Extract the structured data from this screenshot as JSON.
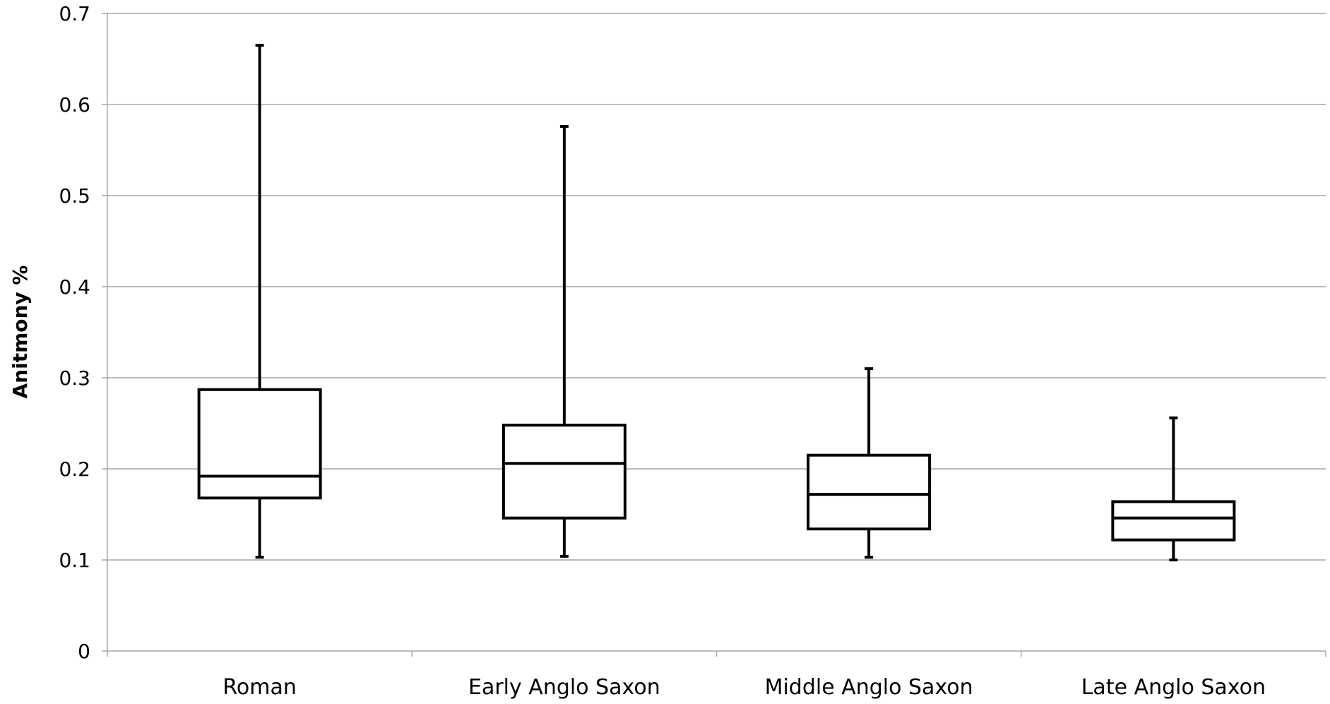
{
  "chart_data": {
    "type": "box",
    "ylabel": "Anitmony %",
    "xlabel": "",
    "ylim": [
      0,
      0.7
    ],
    "yticks": [
      "0",
      "0.1",
      "0.2",
      "0.3",
      "0.4",
      "0.5",
      "0.6",
      "0.7"
    ],
    "grid": true,
    "categories": [
      "Roman",
      "Early Anglo Saxon",
      "Middle Anglo Saxon",
      "Late Anglo Saxon"
    ],
    "boxes": [
      {
        "category": "Roman",
        "min": 0.103,
        "q1": 0.168,
        "median": 0.192,
        "q3": 0.287,
        "max": 0.665
      },
      {
        "category": "Early Anglo Saxon",
        "min": 0.104,
        "q1": 0.146,
        "median": 0.206,
        "q3": 0.248,
        "max": 0.576
      },
      {
        "category": "Middle Anglo Saxon",
        "min": 0.103,
        "q1": 0.134,
        "median": 0.172,
        "q3": 0.215,
        "max": 0.31
      },
      {
        "category": "Late Anglo Saxon",
        "min": 0.1,
        "q1": 0.122,
        "median": 0.146,
        "q3": 0.164,
        "max": 0.256
      }
    ],
    "colors": {
      "grid": "#a6a6a6",
      "axis": "#a6a6a6",
      "box": "#000000"
    }
  }
}
